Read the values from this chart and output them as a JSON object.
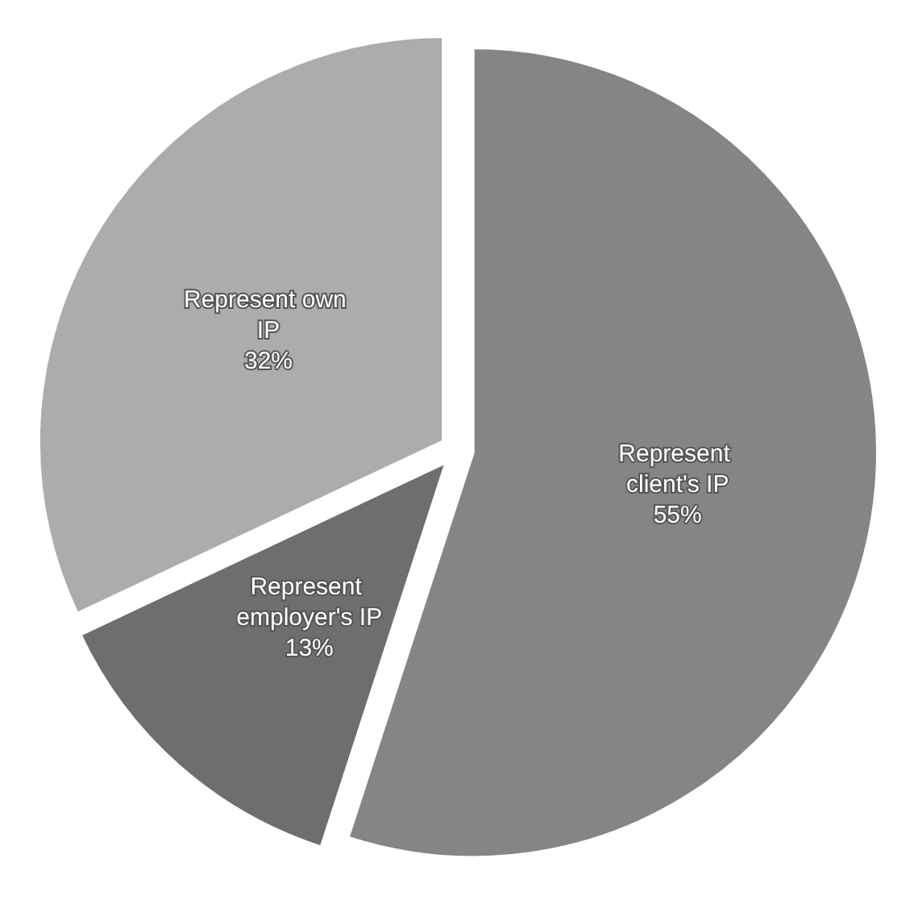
{
  "chart_data": {
    "type": "pie",
    "categories": [
      "Represent client's IP",
      "Represent employer's IP",
      "Represent own IP"
    ],
    "values": [
      55,
      13,
      32
    ],
    "value_labels": [
      "55%",
      "13%",
      "32%"
    ],
    "colors": [
      "#858585",
      "#6e6e6e",
      "#acacac"
    ],
    "legend": false
  }
}
